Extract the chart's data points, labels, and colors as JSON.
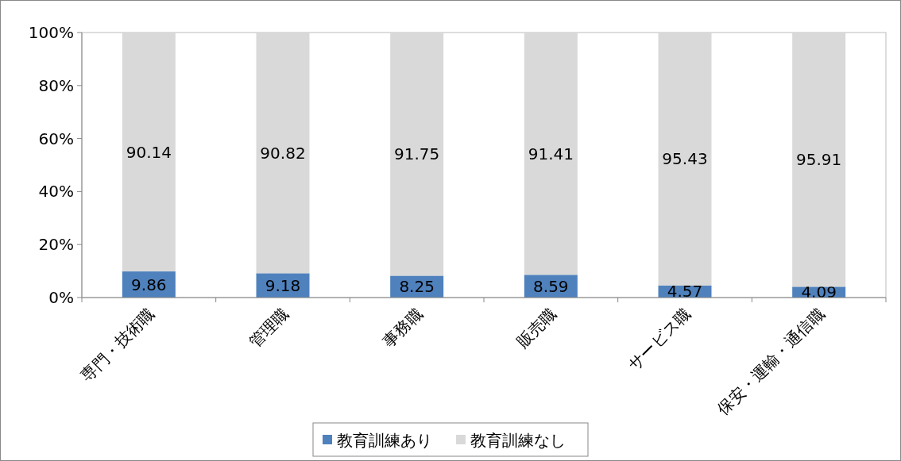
{
  "chart_data": {
    "type": "bar",
    "stacked": true,
    "categories": [
      "専門・技術職",
      "管理職",
      "事務職",
      "販売職",
      "サービス職",
      "保安・運輸・通信職"
    ],
    "series": [
      {
        "name": "教育訓練あり",
        "color": "#4f81bd",
        "values": [
          9.86,
          9.18,
          8.25,
          8.59,
          4.57,
          4.09
        ]
      },
      {
        "name": "教育訓練なし",
        "color": "#d9d9d9",
        "values": [
          90.14,
          90.82,
          91.75,
          91.41,
          95.43,
          95.91
        ]
      }
    ],
    "ylim": [
      0,
      100
    ],
    "yticks": [
      {
        "value": 0,
        "label": "0%"
      },
      {
        "value": 20,
        "label": "20%"
      },
      {
        "value": 40,
        "label": "40%"
      },
      {
        "value": 60,
        "label": "60%"
      },
      {
        "value": 80,
        "label": "80%"
      },
      {
        "value": 100,
        "label": "100%"
      }
    ],
    "data_labels": true,
    "legend": "bottom",
    "grid": false
  }
}
